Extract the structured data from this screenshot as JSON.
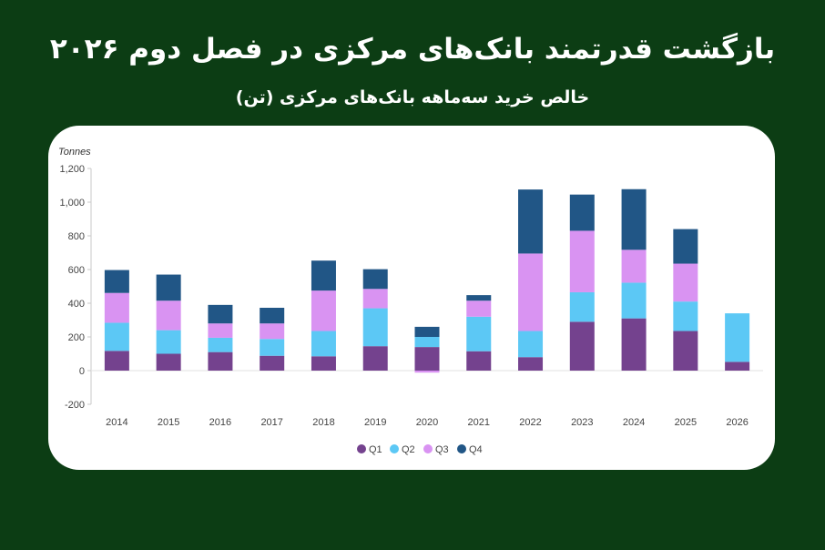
{
  "header": {
    "title": "بازگشت قدرتمند بانک‌های مرکزی در فصل دوم ۲۰۲۶",
    "subtitle": "خالص خرید سه‌ماهه بانک‌های مرکزی (تن)"
  },
  "colors": {
    "background": "#0c3d14",
    "card": "#ffffff",
    "q1": "#74428e",
    "q2": "#5cc8f5",
    "q3": "#d993f2",
    "q4": "#215686"
  },
  "chart_data": {
    "type": "bar",
    "stacked": true,
    "title": "",
    "xlabel": "",
    "ylabel": "Tonnes",
    "ylim": [
      -200,
      1200
    ],
    "yticks": [
      -200,
      0,
      200,
      400,
      600,
      800,
      1000,
      1200
    ],
    "ytick_labels": [
      "-200",
      "0",
      "200",
      "400",
      "600",
      "800",
      "1,000",
      "1,200"
    ],
    "grid": false,
    "legend_position": "bottom",
    "categories": [
      "2014",
      "2015",
      "2016",
      "2017",
      "2018",
      "2019",
      "2020",
      "2021",
      "2022",
      "2023",
      "2024",
      "2025",
      "2026"
    ],
    "series": [
      {
        "name": "Q1",
        "values": [
          117,
          100,
          110,
          88,
          85,
          145,
          140,
          115,
          80,
          290,
          310,
          235,
          52
        ]
      },
      {
        "name": "Q2",
        "values": [
          167,
          140,
          85,
          100,
          150,
          225,
          60,
          205,
          155,
          175,
          212,
          175,
          288
        ]
      },
      {
        "name": "Q3",
        "values": [
          177,
          175,
          85,
          92,
          240,
          115,
          -12,
          95,
          460,
          365,
          195,
          225,
          0
        ]
      },
      {
        "name": "Q4",
        "values": [
          136,
          155,
          110,
          93,
          178,
          117,
          60,
          33,
          380,
          215,
          360,
          205,
          0
        ]
      }
    ]
  }
}
